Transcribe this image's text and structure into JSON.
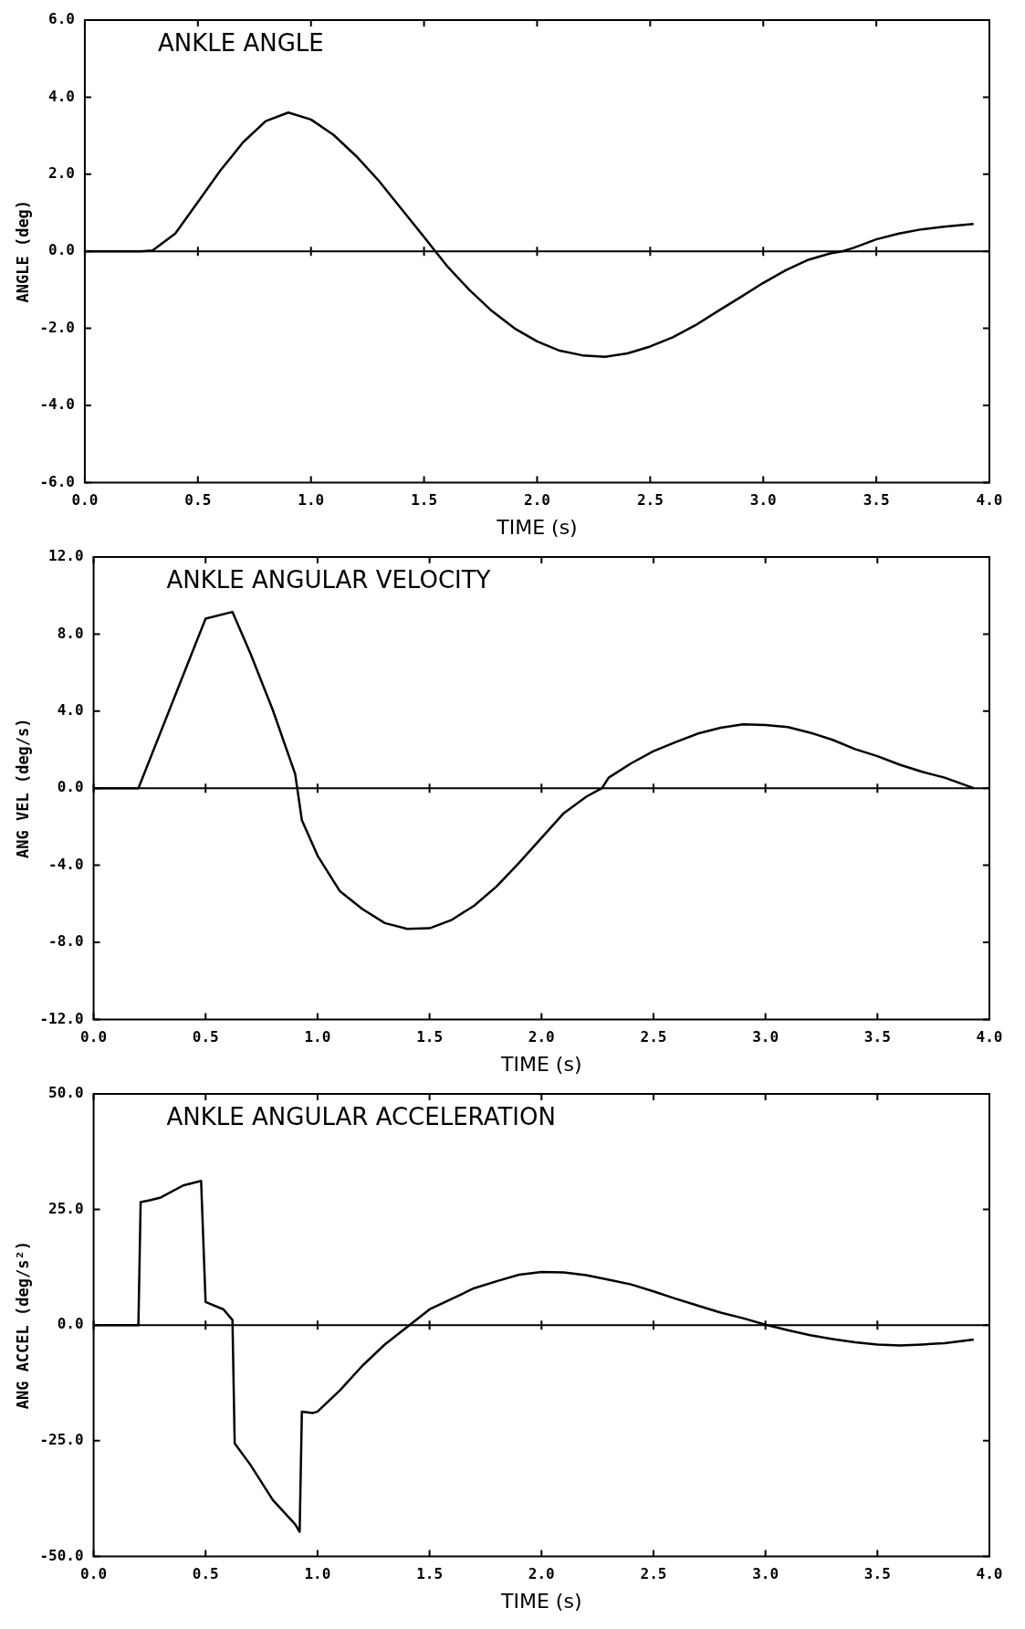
{
  "chart_data": [
    {
      "type": "line",
      "title": "ANKLE ANGLE",
      "xlabel": "TIME (s)",
      "ylabel": "ANGLE (deg)",
      "color": "#000000",
      "x": [
        0,
        0.25,
        0.3,
        0.4,
        0.5,
        0.6,
        0.7,
        0.8,
        0.9,
        1.0,
        1.1,
        1.2,
        1.3,
        1.4,
        1.5,
        1.55,
        1.6,
        1.7,
        1.8,
        1.9,
        2.0,
        2.1,
        2.2,
        2.3,
        2.4,
        2.5,
        2.6,
        2.7,
        2.8,
        2.9,
        3.0,
        3.1,
        3.2,
        3.3,
        3.35,
        3.4,
        3.5,
        3.6,
        3.7,
        3.8,
        3.93
      ],
      "values": [
        0,
        0,
        0.02,
        0.46,
        1.28,
        2.1,
        2.83,
        3.38,
        3.6,
        3.42,
        3.02,
        2.47,
        1.83,
        1.1,
        0.37,
        0,
        -0.37,
        -1.0,
        -1.55,
        -2.0,
        -2.34,
        -2.58,
        -2.7,
        -2.74,
        -2.65,
        -2.47,
        -2.23,
        -1.92,
        -1.55,
        -1.19,
        -0.82,
        -0.49,
        -0.22,
        -0.05,
        0,
        0.09,
        0.31,
        0.46,
        0.57,
        0.64,
        0.71
      ],
      "xlim": [
        0,
        4
      ],
      "xticks": [
        {
          "value": 0,
          "label": "0.0"
        },
        {
          "value": 0.5,
          "label": "0.5"
        },
        {
          "value": 1,
          "label": "1.0"
        },
        {
          "value": 1.5,
          "label": "1.5"
        },
        {
          "value": 2,
          "label": "2.0"
        },
        {
          "value": 2.5,
          "label": "2.5"
        },
        {
          "value": 3,
          "label": "3.0"
        },
        {
          "value": 3.5,
          "label": "3.5"
        },
        {
          "value": 4,
          "label": "4.0"
        }
      ],
      "ylim": [
        -6,
        6
      ],
      "yticks": [
        {
          "value": -6,
          "label": "-6.0"
        },
        {
          "value": -4,
          "label": "-4.0"
        },
        {
          "value": -2,
          "label": "-2.0"
        },
        {
          "value": 0,
          "label": "0.0"
        },
        {
          "value": 2,
          "label": "2.0"
        },
        {
          "value": 4,
          "label": "4.0"
        },
        {
          "value": 6,
          "label": "6.0"
        }
      ],
      "ref_lines": [
        {
          "axis": "y",
          "value": 0
        }
      ]
    },
    {
      "type": "line",
      "title": "ANKLE ANGULAR VELOCITY",
      "xlabel": "TIME (s)",
      "ylabel": "ANG VEL (deg/s)",
      "color": "#000000",
      "x": [
        0,
        0.2,
        0.5,
        0.62,
        0.7,
        0.8,
        0.9,
        0.93,
        1.0,
        1.1,
        1.2,
        1.3,
        1.4,
        1.5,
        1.6,
        1.7,
        1.8,
        1.9,
        2.0,
        2.1,
        2.2,
        2.27,
        2.3,
        2.4,
        2.5,
        2.6,
        2.7,
        2.8,
        2.9,
        3.0,
        3.1,
        3.2,
        3.3,
        3.4,
        3.5,
        3.6,
        3.7,
        3.8,
        3.93
      ],
      "values": [
        0,
        0,
        8.8,
        9.15,
        7.0,
        4.06,
        0.74,
        -1.66,
        -3.5,
        -5.35,
        -6.27,
        -7.0,
        -7.3,
        -7.27,
        -6.83,
        -6.09,
        -5.09,
        -3.87,
        -2.58,
        -1.29,
        -0.44,
        0,
        0.55,
        1.29,
        1.92,
        2.4,
        2.84,
        3.14,
        3.32,
        3.28,
        3.17,
        2.88,
        2.51,
        2.03,
        1.66,
        1.22,
        0.85,
        0.55,
        0
      ],
      "xlim": [
        0,
        4
      ],
      "xticks": [
        {
          "value": 0,
          "label": "0.0"
        },
        {
          "value": 0.5,
          "label": "0.5"
        },
        {
          "value": 1,
          "label": "1.0"
        },
        {
          "value": 1.5,
          "label": "1.5"
        },
        {
          "value": 2,
          "label": "2.0"
        },
        {
          "value": 2.5,
          "label": "2.5"
        },
        {
          "value": 3,
          "label": "3.0"
        },
        {
          "value": 3.5,
          "label": "3.5"
        },
        {
          "value": 4,
          "label": "4.0"
        }
      ],
      "ylim": [
        -12,
        12
      ],
      "yticks": [
        {
          "value": -12,
          "label": "-12.0"
        },
        {
          "value": -8,
          "label": "-8.0"
        },
        {
          "value": -4,
          "label": "-4.0"
        },
        {
          "value": 0,
          "label": "0.0"
        },
        {
          "value": 4,
          "label": "4.0"
        },
        {
          "value": 8,
          "label": "8.0"
        },
        {
          "value": 12,
          "label": "12.0"
        }
      ],
      "ref_lines": [
        {
          "axis": "y",
          "value": 0
        }
      ]
    },
    {
      "type": "line",
      "title": "ANKLE ANGULAR ACCELERATION",
      "xlabel": "TIME (s)",
      "ylabel": "ANG ACCEL (deg/s²)",
      "color": "#000000",
      "x": [
        0,
        0.2,
        0.21,
        0.25,
        0.3,
        0.4,
        0.48,
        0.5,
        0.58,
        0.62,
        0.63,
        0.7,
        0.8,
        0.9,
        0.92,
        0.93,
        0.98,
        1.0,
        1.1,
        1.2,
        1.3,
        1.4,
        1.5,
        1.6,
        1.7,
        1.8,
        1.9,
        2.0,
        2.1,
        2.2,
        2.3,
        2.4,
        2.5,
        2.6,
        2.7,
        2.8,
        2.9,
        3.0,
        3.1,
        3.2,
        3.3,
        3.4,
        3.5,
        3.6,
        3.7,
        3.8,
        3.93
      ],
      "values": [
        0,
        0,
        26.6,
        27,
        27.6,
        30.2,
        31.2,
        5,
        3.4,
        1.1,
        -25.6,
        -30.2,
        -37.8,
        -43.1,
        -44.7,
        -18.7,
        -19,
        -18.7,
        -14.1,
        -8.8,
        -4.2,
        -0.4,
        3.4,
        5.7,
        8.0,
        9.5,
        10.9,
        11.5,
        11.4,
        10.8,
        9.8,
        8.8,
        7.3,
        5.7,
        4.2,
        2.7,
        1.5,
        0.1,
        -1.1,
        -2.2,
        -3.0,
        -3.7,
        -4.2,
        -4.4,
        -4.2,
        -3.9,
        -3.1
      ],
      "xlim": [
        0,
        4
      ],
      "xticks": [
        {
          "value": 0,
          "label": "0.0"
        },
        {
          "value": 0.5,
          "label": "0.5"
        },
        {
          "value": 1,
          "label": "1.0"
        },
        {
          "value": 1.5,
          "label": "1.5"
        },
        {
          "value": 2,
          "label": "2.0"
        },
        {
          "value": 2.5,
          "label": "2.5"
        },
        {
          "value": 3,
          "label": "3.0"
        },
        {
          "value": 3.5,
          "label": "3.5"
        },
        {
          "value": 4,
          "label": "4.0"
        }
      ],
      "ylim": [
        -50,
        50
      ],
      "yticks": [
        {
          "value": -50,
          "label": "-50.0"
        },
        {
          "value": -25,
          "label": "-25.0"
        },
        {
          "value": 0,
          "label": "0.0"
        },
        {
          "value": 25,
          "label": "25.0"
        },
        {
          "value": 50,
          "label": "50.0"
        }
      ],
      "ref_lines": [
        {
          "axis": "y",
          "value": 0
        }
      ]
    }
  ]
}
